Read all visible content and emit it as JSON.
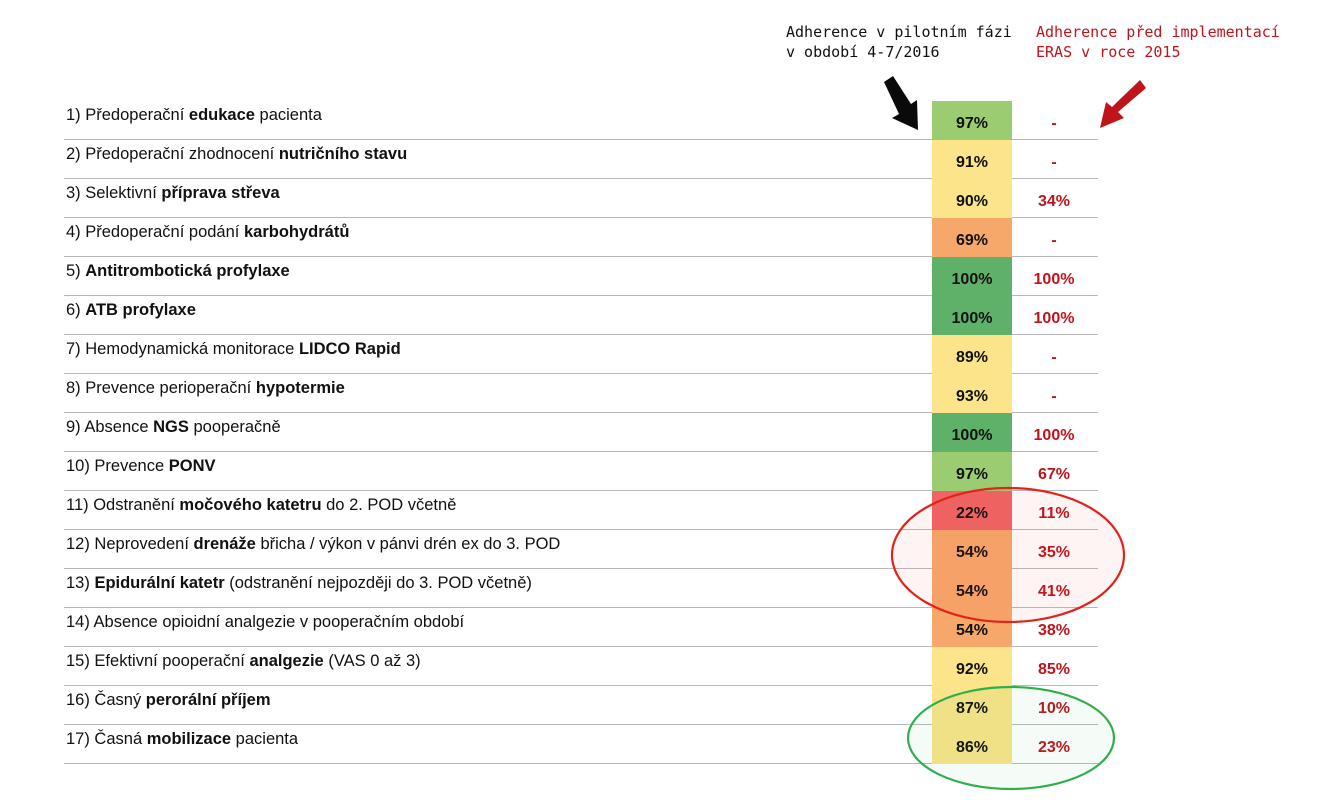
{
  "headers": {
    "pilot_line1": "Adherence v pilotním fázi",
    "pilot_line2": "v období 4-7/2016",
    "before_line1": "Adherence před implementací",
    "before_line2": "ERAS v roce 2015"
  },
  "colors": {
    "green_dark": "#5fb16a",
    "green_light": "#9ccc72",
    "yellow": "#fbe489",
    "orange": "#f6a76a",
    "red": "#f06464",
    "red_text": "#c0141b",
    "ellipse_red": "#e2231a",
    "ellipse_green": "#2fae4a"
  },
  "rows": [
    {
      "prefix": "1) Předoperační ",
      "bold": "edukace",
      "suffix": " pacienta",
      "pilot": "97%",
      "before": "-",
      "color": "#9ccc72"
    },
    {
      "prefix": "2) Předoperační zhodnocení ",
      "bold": "nutričního stavu",
      "suffix": "",
      "pilot": "91%",
      "before": "-",
      "color": "#fbe489"
    },
    {
      "prefix": "3) Selektivní ",
      "bold": "příprava střeva",
      "suffix": "",
      "pilot": "90%",
      "before": "34%",
      "color": "#fbe489"
    },
    {
      "prefix": "4) Předoperační podání ",
      "bold": "karbohydrátů",
      "suffix": "",
      "pilot": "69%",
      "before": "-",
      "color": "#f6a76a"
    },
    {
      "prefix": "5) ",
      "bold": "Antitrombotická profylaxe",
      "suffix": "",
      "pilot": "100%",
      "before": "100%",
      "color": "#5fb16a"
    },
    {
      "prefix": "6) ",
      "bold": "ATB profylaxe",
      "suffix": "",
      "pilot": "100%",
      "before": "100%",
      "color": "#5fb16a"
    },
    {
      "prefix": "7) Hemodynamická monitorace ",
      "bold": "LIDCO Rapid",
      "suffix": "",
      "pilot": "89%",
      "before": "-",
      "color": "#fbe489"
    },
    {
      "prefix": "8) Prevence perioperační ",
      "bold": "hypotermie",
      "suffix": "",
      "pilot": "93%",
      "before": "-",
      "color": "#fbe489"
    },
    {
      "prefix": "9) Absence ",
      "bold": "NGS",
      "suffix": " pooperačně",
      "pilot": "100%",
      "before": "100%",
      "color": "#5fb16a"
    },
    {
      "prefix": "10) Prevence ",
      "bold": "PONV",
      "suffix": "",
      "pilot": "97%",
      "before": "67%",
      "color": "#9ccc72"
    },
    {
      "prefix": "11) Odstranění ",
      "bold": "močového katetru",
      "suffix": " do 2. POD včetně",
      "pilot": "22%",
      "before": "11%",
      "color": "#f06464"
    },
    {
      "prefix": "12) Neprovedení ",
      "bold": "drenáže",
      "suffix": " břicha / výkon v pánvi drén ex do 3. POD",
      "pilot": "54%",
      "before": "35%",
      "color": "#f6a76a"
    },
    {
      "prefix": "13) ",
      "bold": "Epidurální katetr",
      "suffix": " (odstranění nejpozději do 3. POD včetně)",
      "pilot": "54%",
      "before": "41%",
      "color": "#f6a76a"
    },
    {
      "prefix": "14) Absence opioidní analgezie v pooperačním období",
      "bold": "",
      "suffix": "",
      "pilot": "54%",
      "before": "38%",
      "color": "#f6a76a"
    },
    {
      "prefix": "15) Efektivní pooperační ",
      "bold": "analgezie",
      "suffix": " (VAS 0 až 3)",
      "pilot": "92%",
      "before": "85%",
      "color": "#fbe489"
    },
    {
      "prefix": "16) Časný ",
      "bold": "perorální příjem",
      "suffix": "",
      "pilot": "87%",
      "before": "10%",
      "color": "#fbe489"
    },
    {
      "prefix": "17) Časná ",
      "bold": "mobilizace",
      "suffix": " pacienta",
      "pilot": "86%",
      "before": "23%",
      "color": "#fbe489"
    }
  ]
}
